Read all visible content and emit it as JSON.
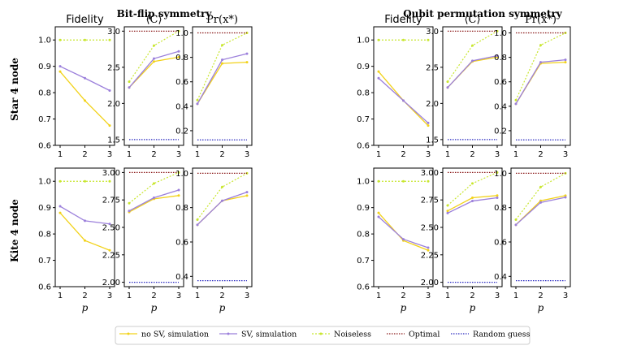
{
  "figure": {
    "group_titles": [
      "Bit-flip symmetry",
      "Qubit permutation symmetry"
    ],
    "row_labels": [
      "Star 4 node",
      "Kite 4 node"
    ],
    "xlabel": "p",
    "legend": [
      {
        "label": "no SV, simulation",
        "color": "#f2d21a",
        "style": "solid-marker"
      },
      {
        "label": "SV, simulation",
        "color": "#9b7fdb",
        "style": "solid-marker"
      },
      {
        "label": "Noiseless",
        "color": "#c8e62e",
        "style": "dotted-marker"
      },
      {
        "label": "Optimal",
        "color": "#8b1a1a",
        "style": "dotted"
      },
      {
        "label": "Random guess",
        "color": "#2a2ac0",
        "style": "dotted"
      }
    ]
  },
  "chart_data": [
    {
      "type": "line",
      "group": "Bit-flip symmetry",
      "row": "Star 4 node",
      "title": "Fidelity",
      "x": [
        1,
        2,
        3
      ],
      "ylim": [
        0.6,
        1.05
      ],
      "yticks": [
        "0.6",
        "0.7",
        "0.8",
        "0.9",
        "1.0"
      ],
      "series": [
        {
          "name": "no SV, simulation",
          "values": [
            0.88,
            0.77,
            0.675
          ]
        },
        {
          "name": "SV, simulation",
          "values": [
            0.9,
            0.855,
            0.808
          ]
        },
        {
          "name": "Noiseless",
          "values": [
            1.0,
            1.0,
            1.0
          ]
        }
      ]
    },
    {
      "type": "line",
      "group": "Bit-flip symmetry",
      "row": "Star 4 node",
      "title": "⟨C⟩",
      "x": [
        1,
        2,
        3
      ],
      "ylim": [
        1.42,
        3.06
      ],
      "yticks": [
        "1.5",
        "2.0",
        "2.5",
        "3.0"
      ],
      "series": [
        {
          "name": "no SV, simulation",
          "values": [
            2.22,
            2.58,
            2.64
          ]
        },
        {
          "name": "SV, simulation",
          "values": [
            2.22,
            2.62,
            2.72
          ]
        },
        {
          "name": "Noiseless",
          "values": [
            2.3,
            2.8,
            3.0
          ]
        },
        {
          "name": "Optimal",
          "values": [
            3.0,
            3.0,
            3.0
          ]
        },
        {
          "name": "Random guess",
          "values": [
            1.5,
            1.5,
            1.5
          ]
        }
      ]
    },
    {
      "type": "line",
      "group": "Bit-flip symmetry",
      "row": "Star 4 node",
      "title": "Pr(x*)",
      "x": [
        1,
        2,
        3
      ],
      "ylim": [
        0.08,
        1.05
      ],
      "yticks": [
        "0.2",
        "0.4",
        "0.6",
        "0.8",
        "1.0"
      ],
      "series": [
        {
          "name": "no SV, simulation",
          "values": [
            0.42,
            0.75,
            0.76
          ]
        },
        {
          "name": "SV, simulation",
          "values": [
            0.42,
            0.78,
            0.83
          ]
        },
        {
          "name": "Noiseless",
          "values": [
            0.45,
            0.9,
            1.0
          ]
        },
        {
          "name": "Optimal",
          "values": [
            1.0,
            1.0,
            1.0
          ]
        },
        {
          "name": "Random guess",
          "values": [
            0.125,
            0.125,
            0.125
          ]
        }
      ]
    },
    {
      "type": "line",
      "group": "Qubit permutation symmetry",
      "row": "Star 4 node",
      "title": "Fidelity",
      "x": [
        1,
        2,
        3
      ],
      "ylim": [
        0.6,
        1.05
      ],
      "yticks": [
        "0.6",
        "0.7",
        "0.8",
        "0.9",
        "1.0"
      ],
      "series": [
        {
          "name": "no SV, simulation",
          "values": [
            0.88,
            0.77,
            0.675
          ]
        },
        {
          "name": "SV, simulation",
          "values": [
            0.855,
            0.77,
            0.685
          ]
        },
        {
          "name": "Noiseless",
          "values": [
            1.0,
            1.0,
            1.0
          ]
        }
      ]
    },
    {
      "type": "line",
      "group": "Qubit permutation symmetry",
      "row": "Star 4 node",
      "title": "⟨C⟩",
      "x": [
        1,
        2,
        3
      ],
      "ylim": [
        1.42,
        3.06
      ],
      "yticks": [
        "1.5",
        "2.0",
        "2.5",
        "3.0"
      ],
      "series": [
        {
          "name": "no SV, simulation",
          "values": [
            2.22,
            2.58,
            2.64
          ]
        },
        {
          "name": "SV, simulation",
          "values": [
            2.22,
            2.59,
            2.66
          ]
        },
        {
          "name": "Noiseless",
          "values": [
            2.3,
            2.8,
            3.0
          ]
        },
        {
          "name": "Optimal",
          "values": [
            3.0,
            3.0,
            3.0
          ]
        },
        {
          "name": "Random guess",
          "values": [
            1.5,
            1.5,
            1.5
          ]
        }
      ]
    },
    {
      "type": "line",
      "group": "Qubit permutation symmetry",
      "row": "Star 4 node",
      "title": "Pr(x*)",
      "x": [
        1,
        2,
        3
      ],
      "ylim": [
        0.08,
        1.05
      ],
      "yticks": [
        "0.2",
        "0.4",
        "0.6",
        "0.8",
        "1.0"
      ],
      "series": [
        {
          "name": "no SV, simulation",
          "values": [
            0.42,
            0.75,
            0.76
          ]
        },
        {
          "name": "SV, simulation",
          "values": [
            0.42,
            0.76,
            0.78
          ]
        },
        {
          "name": "Noiseless",
          "values": [
            0.45,
            0.9,
            1.0
          ]
        },
        {
          "name": "Optimal",
          "values": [
            1.0,
            1.0,
            1.0
          ]
        },
        {
          "name": "Random guess",
          "values": [
            0.125,
            0.125,
            0.125
          ]
        }
      ]
    },
    {
      "type": "line",
      "group": "Bit-flip symmetry",
      "row": "Kite 4 node",
      "title": "Fidelity",
      "x": [
        1,
        2,
        3
      ],
      "ylim": [
        0.6,
        1.05
      ],
      "yticks": [
        "0.6",
        "0.7",
        "0.8",
        "0.9",
        "1.0"
      ],
      "series": [
        {
          "name": "no SV, simulation",
          "values": [
            0.88,
            0.775,
            0.738
          ]
        },
        {
          "name": "SV, simulation",
          "values": [
            0.905,
            0.85,
            0.838
          ]
        },
        {
          "name": "Noiseless",
          "values": [
            1.0,
            1.0,
            1.0
          ]
        }
      ]
    },
    {
      "type": "line",
      "group": "Bit-flip symmetry",
      "row": "Kite 4 node",
      "title": "⟨C⟩",
      "x": [
        1,
        2,
        3
      ],
      "ylim": [
        1.96,
        3.04
      ],
      "yticks": [
        "2.00",
        "2.25",
        "2.50",
        "2.75",
        "3.00"
      ],
      "series": [
        {
          "name": "no SV, simulation",
          "values": [
            2.64,
            2.76,
            2.79
          ]
        },
        {
          "name": "SV, simulation",
          "values": [
            2.65,
            2.77,
            2.84
          ]
        },
        {
          "name": "Noiseless",
          "values": [
            2.72,
            2.9,
            3.0
          ]
        },
        {
          "name": "Optimal",
          "values": [
            3.0,
            3.0,
            3.0
          ]
        },
        {
          "name": "Random guess",
          "values": [
            2.0,
            2.0,
            2.0
          ]
        }
      ]
    },
    {
      "type": "line",
      "group": "Bit-flip symmetry",
      "row": "Kite 4 node",
      "title": "Pr(x*)",
      "x": [
        1,
        2,
        3
      ],
      "ylim": [
        0.34,
        1.03
      ],
      "yticks": [
        "0.4",
        "0.6",
        "0.8",
        "1.0"
      ],
      "series": [
        {
          "name": "no SV, simulation",
          "values": [
            0.7,
            0.84,
            0.87
          ]
        },
        {
          "name": "SV, simulation",
          "values": [
            0.7,
            0.84,
            0.89
          ]
        },
        {
          "name": "Noiseless",
          "values": [
            0.73,
            0.92,
            1.0
          ]
        },
        {
          "name": "Optimal",
          "values": [
            1.0,
            1.0,
            1.0
          ]
        },
        {
          "name": "Random guess",
          "values": [
            0.375,
            0.375,
            0.375
          ]
        }
      ]
    },
    {
      "type": "line",
      "group": "Qubit permutation symmetry",
      "row": "Kite 4 node",
      "title": "Fidelity",
      "x": [
        1,
        2,
        3
      ],
      "ylim": [
        0.6,
        1.05
      ],
      "yticks": [
        "0.6",
        "0.7",
        "0.8",
        "0.9",
        "1.0"
      ],
      "series": [
        {
          "name": "no SV, simulation",
          "values": [
            0.88,
            0.775,
            0.738
          ]
        },
        {
          "name": "SV, simulation",
          "values": [
            0.865,
            0.78,
            0.748
          ]
        },
        {
          "name": "Noiseless",
          "values": [
            1.0,
            1.0,
            1.0
          ]
        }
      ]
    },
    {
      "type": "line",
      "group": "Qubit permutation symmetry",
      "row": "Kite 4 node",
      "title": "⟨C⟩",
      "x": [
        1,
        2,
        3
      ],
      "ylim": [
        1.96,
        3.04
      ],
      "yticks": [
        "2.00",
        "2.25",
        "2.50",
        "2.75",
        "3.00"
      ],
      "series": [
        {
          "name": "no SV, simulation",
          "values": [
            2.65,
            2.77,
            2.79
          ]
        },
        {
          "name": "SV, simulation",
          "values": [
            2.63,
            2.74,
            2.77
          ]
        },
        {
          "name": "Noiseless",
          "values": [
            2.7,
            2.9,
            3.0
          ]
        },
        {
          "name": "Optimal",
          "values": [
            3.0,
            3.0,
            3.0
          ]
        },
        {
          "name": "Random guess",
          "values": [
            2.0,
            2.0,
            2.0
          ]
        }
      ]
    },
    {
      "type": "line",
      "group": "Qubit permutation symmetry",
      "row": "Kite 4 node",
      "title": "Pr(x*)",
      "x": [
        1,
        2,
        3
      ],
      "ylim": [
        0.34,
        1.03
      ],
      "yticks": [
        "0.4",
        "0.6",
        "0.8",
        "1.0"
      ],
      "series": [
        {
          "name": "no SV, simulation",
          "values": [
            0.7,
            0.84,
            0.87
          ]
        },
        {
          "name": "SV, simulation",
          "values": [
            0.7,
            0.83,
            0.86
          ]
        },
        {
          "name": "Noiseless",
          "values": [
            0.73,
            0.92,
            1.0
          ]
        },
        {
          "name": "Optimal",
          "values": [
            1.0,
            1.0,
            1.0
          ]
        },
        {
          "name": "Random guess",
          "values": [
            0.375,
            0.375,
            0.375
          ]
        }
      ]
    }
  ]
}
